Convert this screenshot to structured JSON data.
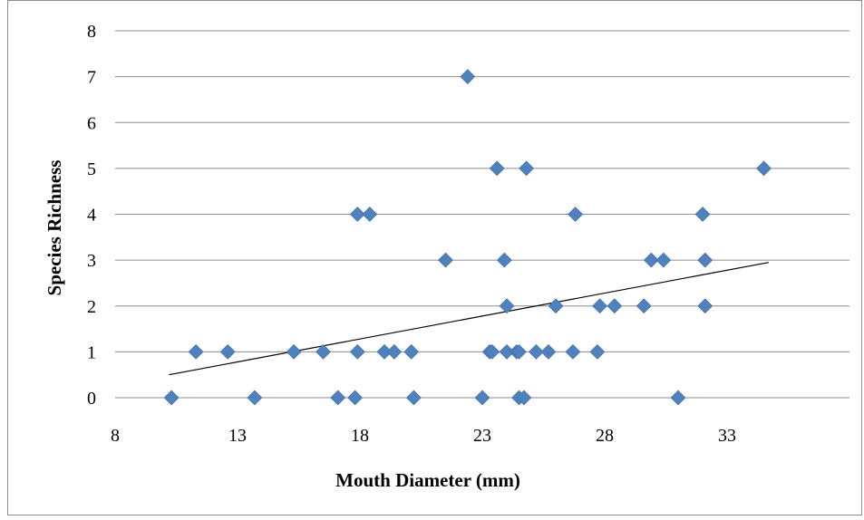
{
  "chart_data": {
    "type": "scatter",
    "title": "",
    "xlabel": "Mouth Diameter (mm)",
    "ylabel": "Species Richness",
    "xlim": [
      8,
      38
    ],
    "ylim": [
      0,
      8
    ],
    "x_ticks": [
      8,
      13,
      18,
      23,
      28,
      33
    ],
    "y_ticks": [
      0,
      1,
      2,
      3,
      4,
      5,
      6,
      7,
      8
    ],
    "grid": "horizontal",
    "legend": "none",
    "marker": "diamond",
    "marker_color": "#4f81bd",
    "trendline": {
      "type": "linear",
      "color": "#000000",
      "x": [
        10.2,
        34.7
      ],
      "y": [
        0.5,
        2.95
      ]
    },
    "points": [
      {
        "x": 10.3,
        "y": 0
      },
      {
        "x": 11.3,
        "y": 1
      },
      {
        "x": 12.6,
        "y": 1
      },
      {
        "x": 13.7,
        "y": 0
      },
      {
        "x": 15.3,
        "y": 1
      },
      {
        "x": 16.5,
        "y": 1
      },
      {
        "x": 17.1,
        "y": 0
      },
      {
        "x": 17.8,
        "y": 0
      },
      {
        "x": 17.9,
        "y": 1
      },
      {
        "x": 17.9,
        "y": 4
      },
      {
        "x": 18.4,
        "y": 4
      },
      {
        "x": 19.0,
        "y": 1
      },
      {
        "x": 19.4,
        "y": 1
      },
      {
        "x": 20.1,
        "y": 1
      },
      {
        "x": 20.2,
        "y": 0
      },
      {
        "x": 21.5,
        "y": 3
      },
      {
        "x": 22.4,
        "y": 7
      },
      {
        "x": 23.0,
        "y": 0
      },
      {
        "x": 23.3,
        "y": 1
      },
      {
        "x": 23.4,
        "y": 1
      },
      {
        "x": 23.6,
        "y": 5
      },
      {
        "x": 23.9,
        "y": 3
      },
      {
        "x": 24.0,
        "y": 1
      },
      {
        "x": 24.0,
        "y": 2
      },
      {
        "x": 24.4,
        "y": 1
      },
      {
        "x": 24.5,
        "y": 0
      },
      {
        "x": 24.5,
        "y": 1
      },
      {
        "x": 24.7,
        "y": 0
      },
      {
        "x": 24.8,
        "y": 5
      },
      {
        "x": 25.2,
        "y": 1
      },
      {
        "x": 25.7,
        "y": 1
      },
      {
        "x": 26.0,
        "y": 2
      },
      {
        "x": 26.7,
        "y": 1
      },
      {
        "x": 26.8,
        "y": 4
      },
      {
        "x": 27.7,
        "y": 1
      },
      {
        "x": 27.8,
        "y": 2
      },
      {
        "x": 28.4,
        "y": 2
      },
      {
        "x": 29.6,
        "y": 2
      },
      {
        "x": 29.9,
        "y": 3
      },
      {
        "x": 30.4,
        "y": 3
      },
      {
        "x": 31.0,
        "y": 0
      },
      {
        "x": 32.0,
        "y": 4
      },
      {
        "x": 32.1,
        "y": 3
      },
      {
        "x": 32.1,
        "y": 2
      },
      {
        "x": 34.5,
        "y": 5
      }
    ]
  }
}
